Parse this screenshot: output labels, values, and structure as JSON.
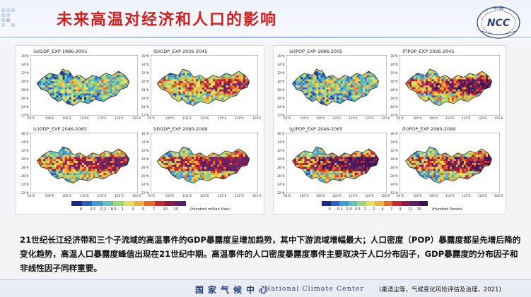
{
  "title": "未来高温对经济和人口的影响",
  "logo": {
    "top_text": "中 国",
    "emblem_text": "NCC"
  },
  "gdp_panels": [
    {
      "label": "(a)GDP_EXP 1986-2005"
    },
    {
      "label": "(b)GDP_EXP 2026-2045"
    },
    {
      "label": "(c)GDP_EXP 2046-2065"
    },
    {
      "label": "(d)GDP_EXP 2080-2099"
    }
  ],
  "pop_panels": [
    {
      "label": "(e)POP_EXP 1986-2005"
    },
    {
      "label": "(f)POP_EXP 2026-2045"
    },
    {
      "label": "(g)POP_EXP 2046-2065"
    },
    {
      "label": "(h)POP_EXP 2080-2099"
    }
  ],
  "lat_ticks": [
    "36°N",
    "34°N",
    "32°N",
    "30°N",
    "28°N",
    "26°N",
    "24°N",
    "22°N"
  ],
  "lon_ticks": [
    "95°E",
    "100°E",
    "105°E",
    "110°E",
    "115°E",
    "120°E",
    "125°E"
  ],
  "gdp_colorbar": {
    "ticks": [
      "0",
      "0.1",
      "0.2",
      "0.5",
      "1",
      "3",
      "5",
      "7",
      "10",
      "20"
    ],
    "unit": "(Hundred million Yuan)",
    "colors": [
      "#1a2a8a",
      "#2f5fc4",
      "#3f9bd6",
      "#5fc2b3",
      "#9bd77a",
      "#e3e25a",
      "#f2b23b",
      "#ea6a26",
      "#c9262b",
      "#8d1a4a",
      "#5b1f6a"
    ]
  },
  "pop_colorbar": {
    "ticks": [
      "0",
      "0.1",
      "0.3",
      "0.5",
      "1",
      "2",
      "4",
      "7",
      "9",
      "11",
      "15"
    ],
    "unit": "(Hundred Person)",
    "colors": [
      "#1a2a8a",
      "#2f5fc4",
      "#3f9bd6",
      "#5fc2b3",
      "#9bd77a",
      "#e3e25a",
      "#f2b23b",
      "#ea6a26",
      "#c9262b",
      "#8d1a4a",
      "#5b1f6a",
      "#3b1352"
    ]
  },
  "body_text": "21世纪长江经济带和三个子流域的高温事件的GDP暴露度呈增加趋势，其中下游流域增幅最大；人口密度（POP）暴露度都呈先增后降的变化趋势，高温人口暴露度峰值出现在21世纪中期。高温事件的人口密度暴露度事件主要取决于人口分布因子，GDP暴露度的分布因子和非线性因子同样重要。",
  "footer": {
    "cn": "国家气候中心",
    "en": "National Climate Center",
    "citation": "(巢清尘等，气候变化风险评估及治理，2021)"
  }
}
